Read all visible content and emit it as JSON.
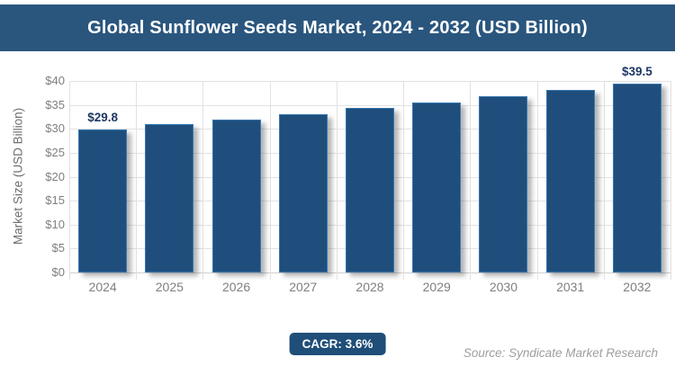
{
  "header": {
    "title": "Global Sunflower Seeds Market, 2024 - 2032 (USD Billion)"
  },
  "chart_data": {
    "type": "bar",
    "title": "Global Sunflower Seeds Market, 2024 - 2032 (USD Billion)",
    "categories": [
      "2024",
      "2025",
      "2026",
      "2027",
      "2028",
      "2029",
      "2030",
      "2031",
      "2032"
    ],
    "values": [
      29.8,
      30.9,
      32.0,
      33.1,
      34.3,
      35.5,
      36.8,
      38.1,
      39.5
    ],
    "value_labels": [
      "$29.8",
      "",
      "",
      "",
      "",
      "",
      "",
      "",
      "$39.5"
    ],
    "xlabel": "",
    "ylabel": "Market Size (USD Billion)",
    "ylim": [
      0,
      40
    ],
    "ytick_values": [
      0,
      5,
      10,
      15,
      20,
      25,
      30,
      35,
      40
    ],
    "ytick_labels": [
      "$0",
      "$5",
      "$10",
      "$15",
      "$20",
      "$25",
      "$30",
      "$35",
      "$40"
    ],
    "grid": true,
    "legend": false,
    "colors": {
      "bar_fill": "#1F4E7C",
      "bar_border": "#3877B0",
      "header_bg": "#2A567E",
      "badge_bg": "#1F4E79",
      "gridline": "#E2E2E2",
      "axis_text": "#7F7F7F",
      "value_label_text": "#1F3864",
      "source_text": "#9E9E9E"
    }
  },
  "footer": {
    "cagr_label": "CAGR: 3.6%",
    "source": "Source: Syndicate Market Research"
  }
}
